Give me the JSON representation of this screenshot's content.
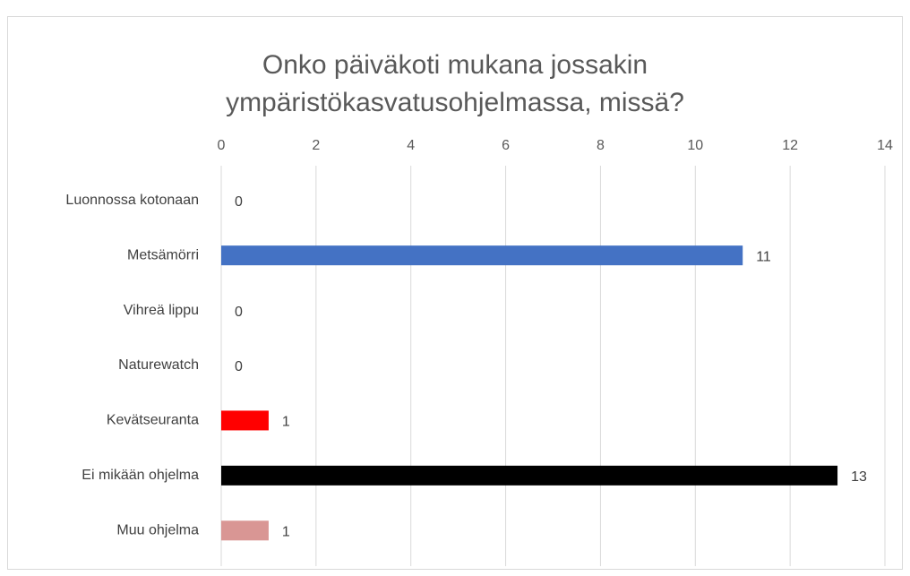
{
  "chart_data": {
    "type": "barh",
    "title": [
      "Onko päiväkoti mukana jossakin",
      "ympäristökasvatusohjelmassa, missä?"
    ],
    "categories": [
      "Luonnossa kotonaan",
      "Metsämörri",
      "Vihreä lippu",
      "Naturewatch",
      "Kevätseuranta",
      "Ei mikään ohjelma",
      "Muu ohjelma"
    ],
    "values": [
      0,
      11,
      0,
      0,
      1,
      13,
      1
    ],
    "colors": [
      "#4472c4",
      "#4472c4",
      "#4472c4",
      "#4472c4",
      "#ff0000",
      "#000000",
      "#d99694"
    ],
    "xlim": [
      0,
      14
    ],
    "xticks": [
      0,
      2,
      4,
      6,
      8,
      10,
      12,
      14
    ],
    "grid": true
  }
}
